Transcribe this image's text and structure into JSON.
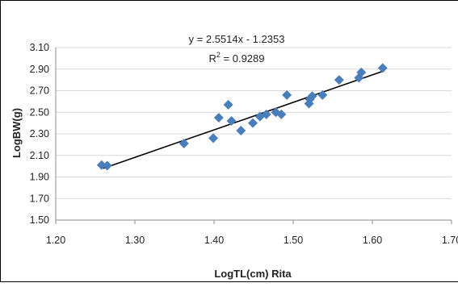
{
  "chart_data": {
    "type": "scatter",
    "xlabel": "LogTL(cm) Rita",
    "ylabel": "LogBW(g)",
    "xlim": [
      1.2,
      1.7
    ],
    "ylim": [
      1.5,
      3.1
    ],
    "x_ticks": [
      "1.20",
      "1.30",
      "1.40",
      "1.50",
      "1.60",
      "1.70"
    ],
    "y_ticks": [
      "1.50",
      "1.70",
      "1.90",
      "2.10",
      "2.30",
      "2.50",
      "2.70",
      "2.90",
      "3.10"
    ],
    "grid": "horizontal",
    "marker_color": "#4a7ebb",
    "trendline_color": "#000000",
    "trendline": {
      "slope": 2.5514,
      "intercept": -1.2353,
      "x_range": [
        1.26,
        1.615
      ],
      "equation": "y = 2.5514x - 1.2353",
      "r2_prefix": "R",
      "r2_exp": "2",
      "r2_suffix": " = 0.9289"
    },
    "points": [
      {
        "x": 1.258,
        "y": 2.01
      },
      {
        "x": 1.265,
        "y": 2.005
      },
      {
        "x": 1.362,
        "y": 2.21
      },
      {
        "x": 1.399,
        "y": 2.26
      },
      {
        "x": 1.406,
        "y": 2.45
      },
      {
        "x": 1.418,
        "y": 2.57
      },
      {
        "x": 1.422,
        "y": 2.42
      },
      {
        "x": 1.434,
        "y": 2.33
      },
      {
        "x": 1.449,
        "y": 2.4
      },
      {
        "x": 1.458,
        "y": 2.46
      },
      {
        "x": 1.466,
        "y": 2.48
      },
      {
        "x": 1.478,
        "y": 2.5
      },
      {
        "x": 1.485,
        "y": 2.48
      },
      {
        "x": 1.492,
        "y": 2.66
      },
      {
        "x": 1.52,
        "y": 2.58
      },
      {
        "x": 1.521,
        "y": 2.62
      },
      {
        "x": 1.524,
        "y": 2.65
      },
      {
        "x": 1.537,
        "y": 2.66
      },
      {
        "x": 1.558,
        "y": 2.8
      },
      {
        "x": 1.583,
        "y": 2.82
      },
      {
        "x": 1.586,
        "y": 2.87
      },
      {
        "x": 1.613,
        "y": 2.91
      }
    ]
  }
}
